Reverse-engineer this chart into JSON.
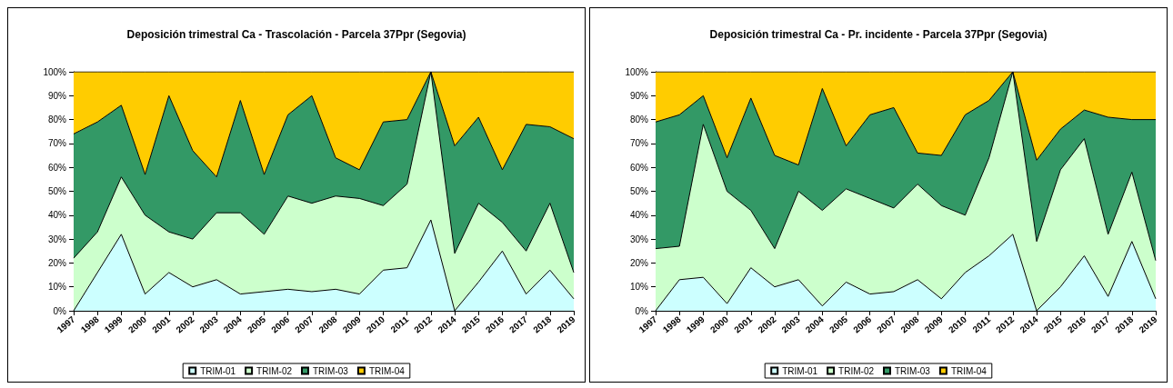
{
  "chart_data": [
    {
      "type": "area",
      "title": "Deposición trimestral Ca - Trascolación - Parcela 37Ppr (Segovia)",
      "stacked": true,
      "legend": "bottom",
      "grid": false,
      "ylim": [
        0,
        100
      ],
      "yticks": [
        {
          "value": 0,
          "label": "0%"
        },
        {
          "value": 10,
          "label": "10%"
        },
        {
          "value": 20,
          "label": "20%"
        },
        {
          "value": 30,
          "label": "30%"
        },
        {
          "value": 40,
          "label": "40%"
        },
        {
          "value": 50,
          "label": "50%"
        },
        {
          "value": 60,
          "label": "60%"
        },
        {
          "value": 70,
          "label": "70%"
        },
        {
          "value": 80,
          "label": "80%"
        },
        {
          "value": 90,
          "label": "90%"
        },
        {
          "value": 100,
          "label": "100%"
        }
      ],
      "categories": [
        "1997",
        "1998",
        "1999",
        "2000",
        "2001",
        "2002",
        "2003",
        "2004",
        "2005",
        "2006",
        "2007",
        "2008",
        "2009",
        "2010",
        "2011",
        "2012",
        "2014",
        "2015",
        "2016",
        "2017",
        "2018",
        "2019"
      ],
      "series": [
        {
          "name": "TRIM-01",
          "color": "#ccffff",
          "values": [
            0,
            16,
            32,
            7,
            16,
            10,
            13,
            7,
            8,
            9,
            8,
            9,
            7,
            17,
            18,
            38,
            0,
            12,
            25,
            7,
            17,
            5
          ]
        },
        {
          "name": "TRIM-02",
          "color": "#ccffcc",
          "values": [
            22,
            17,
            24,
            33,
            17,
            20,
            28,
            34,
            24,
            39,
            37,
            39,
            40,
            27,
            35,
            62,
            24,
            33,
            12,
            18,
            28,
            11
          ]
        },
        {
          "name": "TRIM-03",
          "color": "#339966",
          "values": [
            52,
            46,
            30,
            17,
            57,
            37,
            15,
            47,
            25,
            34,
            45,
            16,
            12,
            35,
            27,
            0,
            45,
            36,
            22,
            53,
            32,
            56
          ]
        },
        {
          "name": "TRIM-04",
          "color": "#ffcc00",
          "values": [
            26,
            21,
            14,
            43,
            10,
            33,
            44,
            12,
            43,
            18,
            10,
            36,
            41,
            21,
            20,
            0,
            31,
            19,
            41,
            22,
            23,
            28
          ]
        }
      ]
    },
    {
      "type": "area",
      "title": "Deposición trimestral Ca - Pr. incidente - Parcela 37Ppr (Segovia)",
      "stacked": true,
      "legend": "bottom",
      "grid": false,
      "ylim": [
        0,
        100
      ],
      "yticks": [
        {
          "value": 0,
          "label": "0%"
        },
        {
          "value": 10,
          "label": "10%"
        },
        {
          "value": 20,
          "label": "20%"
        },
        {
          "value": 30,
          "label": "30%"
        },
        {
          "value": 40,
          "label": "40%"
        },
        {
          "value": 50,
          "label": "50%"
        },
        {
          "value": 60,
          "label": "60%"
        },
        {
          "value": 70,
          "label": "70%"
        },
        {
          "value": 80,
          "label": "80%"
        },
        {
          "value": 90,
          "label": "90%"
        },
        {
          "value": 100,
          "label": "100%"
        }
      ],
      "categories": [
        "1997",
        "1998",
        "1999",
        "2000",
        "2001",
        "2002",
        "2003",
        "2004",
        "2005",
        "2006",
        "2007",
        "2008",
        "2009",
        "2010",
        "2011",
        "2012",
        "2014",
        "2015",
        "2016",
        "2017",
        "2018",
        "2019"
      ],
      "series": [
        {
          "name": "TRIM-01",
          "color": "#ccffff",
          "values": [
            0,
            13,
            14,
            3,
            18,
            10,
            13,
            2,
            12,
            7,
            8,
            13,
            5,
            16,
            23,
            32,
            0,
            10,
            23,
            6,
            29,
            5
          ]
        },
        {
          "name": "TRIM-02",
          "color": "#ccffcc",
          "values": [
            26,
            14,
            64,
            47,
            24,
            16,
            37,
            40,
            39,
            40,
            35,
            40,
            39,
            24,
            41,
            68,
            29,
            49,
            49,
            26,
            29,
            16
          ]
        },
        {
          "name": "TRIM-03",
          "color": "#339966",
          "values": [
            53,
            55,
            12,
            14,
            47,
            39,
            11,
            51,
            18,
            35,
            42,
            13,
            21,
            42,
            24,
            0,
            34,
            17,
            12,
            49,
            22,
            59
          ]
        },
        {
          "name": "TRIM-04",
          "color": "#ffcc00",
          "values": [
            21,
            18,
            10,
            36,
            11,
            35,
            39,
            7,
            31,
            18,
            15,
            34,
            35,
            18,
            12,
            0,
            37,
            24,
            16,
            19,
            20,
            20
          ]
        }
      ]
    }
  ]
}
